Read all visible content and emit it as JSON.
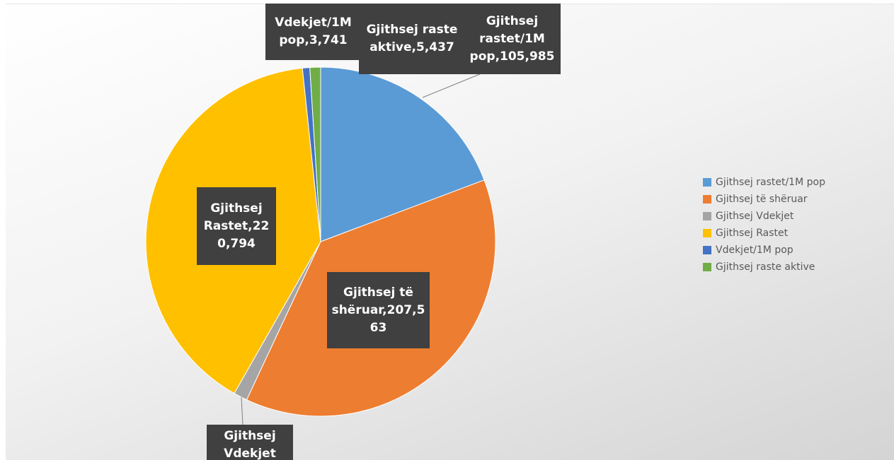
{
  "chart_data": {
    "type": "pie",
    "categories": [
      "Gjithsej rastet/1M pop",
      "Gjithsej të shëruar",
      "Gjithsej Vdekjet",
      "Gjithsej Rastet",
      "Vdekjet/1M pop",
      "Gjithsej raste aktive"
    ],
    "values": [
      105985,
      207563,
      7000,
      220794,
      3741,
      5437
    ],
    "value_labels": [
      "Gjithsej rastet/1M pop,105,985",
      "Gjithsej të shëruar,207,563",
      null,
      "Gjithsej Rastet,220,794",
      "Vdekjet/1M pop,3,741",
      "Gjithsej raste aktive,5,437"
    ],
    "colors": [
      "#5b9bd5",
      "#ed7d31",
      "#a5a5a5",
      "#ffc000",
      "#4472c4",
      "#70ad47"
    ],
    "legend": "right"
  }
}
